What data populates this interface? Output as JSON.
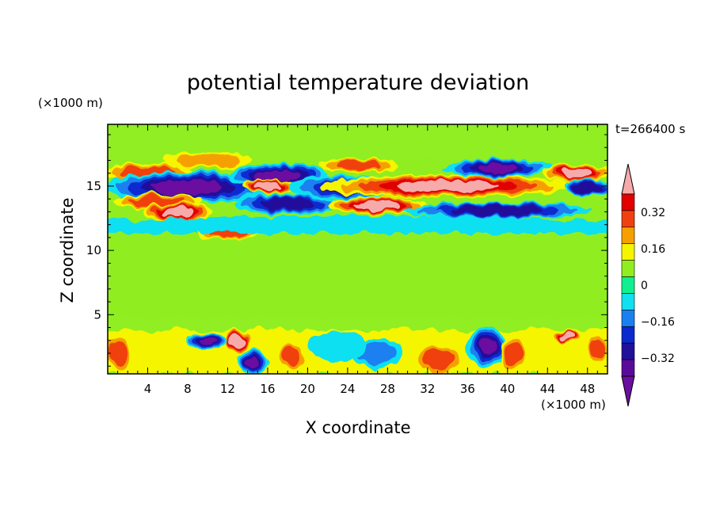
{
  "chart_data": {
    "type": "heatmap",
    "title": "potential temperature deviation",
    "xlabel": "X coordinate",
    "ylabel": "Z coordinate",
    "x_unit": "(×1000 m)",
    "z_unit": "(×1000 m)",
    "time_label": "t=266400 s",
    "xlim": [
      0,
      50
    ],
    "zlim": [
      0.4,
      19.8
    ],
    "x_ticks": [
      4,
      8,
      12,
      16,
      20,
      24,
      28,
      32,
      36,
      40,
      44,
      48
    ],
    "z_ticks": [
      5,
      10,
      15
    ],
    "colorbar": {
      "levels": [
        -0.4,
        -0.32,
        -0.24,
        -0.16,
        -0.08,
        0,
        0.08,
        0.16,
        0.24,
        0.32,
        0.4
      ],
      "colors": [
        "#5a0a9a",
        "#20109a",
        "#0a2ad0",
        "#1a80f0",
        "#10e0f0",
        "#10f090",
        "#90ee20",
        "#f5f500",
        "#f5a000",
        "#f04010",
        "#e00000"
      ],
      "under_color": "#6a10a0",
      "over_color": "#f7aaaa",
      "tick_labels": [
        "0.32",
        "0.16",
        "0",
        "−0.16",
        "−0.32"
      ],
      "tick_values": [
        0.32,
        0.16,
        0,
        -0.16,
        -0.32
      ]
    },
    "field_features": [
      {
        "x": 4,
        "z": 16.0,
        "value": 0.3,
        "rx": 4.0,
        "rz": 0.6
      },
      {
        "x": 10,
        "z": 17.0,
        "value": 0.2,
        "rx": 4.0,
        "rz": 0.5
      },
      {
        "x": 8,
        "z": 14.9,
        "value": -0.45,
        "rx": 8.0,
        "rz": 1.0
      },
      {
        "x": 17,
        "z": 15.8,
        "value": -0.45,
        "rx": 4.5,
        "rz": 0.8
      },
      {
        "x": 16,
        "z": 15.0,
        "value": 0.45,
        "rx": 2.2,
        "rz": 0.4
      },
      {
        "x": 24,
        "z": 14.9,
        "value": -0.35,
        "rx": 5.5,
        "rz": 0.7
      },
      {
        "x": 5,
        "z": 13.8,
        "value": 0.3,
        "rx": 4.0,
        "rz": 0.4
      },
      {
        "x": 7,
        "z": 13.0,
        "value": 0.45,
        "rx": 3.0,
        "rz": 0.5
      },
      {
        "x": 18,
        "z": 13.6,
        "value": -0.38,
        "rx": 5.0,
        "rz": 0.6
      },
      {
        "x": 27,
        "z": 13.5,
        "value": 0.45,
        "rx": 4.5,
        "rz": 0.5
      },
      {
        "x": 34,
        "z": 15.0,
        "value": 0.45,
        "rx": 12.0,
        "rz": 0.7
      },
      {
        "x": 39,
        "z": 13.1,
        "value": -0.38,
        "rx": 9.0,
        "rz": 0.4
      },
      {
        "x": 39,
        "z": 16.4,
        "value": -0.42,
        "rx": 5.0,
        "rz": 0.5
      },
      {
        "x": 25,
        "z": 16.6,
        "value": 0.3,
        "rx": 3.5,
        "rz": 0.4
      },
      {
        "x": 47,
        "z": 16.0,
        "value": 0.45,
        "rx": 3.0,
        "rz": 0.5
      },
      {
        "x": 48,
        "z": 14.9,
        "value": -0.38,
        "rx": 2.0,
        "rz": 0.4
      },
      {
        "x": 12,
        "z": 11.4,
        "value": 0.3,
        "rx": 2.5,
        "rz": 0.4
      },
      {
        "x": 15,
        "z": 11.8,
        "value": 0.45,
        "rx": 1.5,
        "rz": 0.3
      },
      {
        "x": 25,
        "z": 12.0,
        "value": -0.1,
        "rx": 25.0,
        "rz": 0.5
      },
      {
        "x": 13,
        "z": 2.9,
        "value": 0.45,
        "rx": 0.8,
        "rz": 0.8
      },
      {
        "x": 10,
        "z": 3.0,
        "value": -0.4,
        "rx": 1.5,
        "rz": 0.5
      },
      {
        "x": 14.5,
        "z": 1.3,
        "value": -0.4,
        "rx": 1.0,
        "rz": 0.8
      },
      {
        "x": 1,
        "z": 2.0,
        "value": 0.3,
        "rx": 0.8,
        "rz": 1.4
      },
      {
        "x": 18.5,
        "z": 1.8,
        "value": 0.3,
        "rx": 1.0,
        "rz": 1.0
      },
      {
        "x": 33,
        "z": 1.5,
        "value": 0.3,
        "rx": 2.0,
        "rz": 1.0
      },
      {
        "x": 38,
        "z": 2.5,
        "value": -0.42,
        "rx": 1.5,
        "rz": 1.4
      },
      {
        "x": 40.5,
        "z": 2.0,
        "value": 0.3,
        "rx": 0.8,
        "rz": 1.2
      },
      {
        "x": 49,
        "z": 2.3,
        "value": 0.3,
        "rx": 0.6,
        "rz": 1.0
      },
      {
        "x": 46,
        "z": 3.3,
        "value": 0.4,
        "rx": 1.2,
        "rz": 0.3
      },
      {
        "x": 27,
        "z": 2.0,
        "value": -0.2,
        "rx": 2.0,
        "rz": 1.0
      },
      {
        "x": 23,
        "z": 2.5,
        "value": -0.1,
        "rx": 2.5,
        "rz": 1.0
      }
    ]
  }
}
